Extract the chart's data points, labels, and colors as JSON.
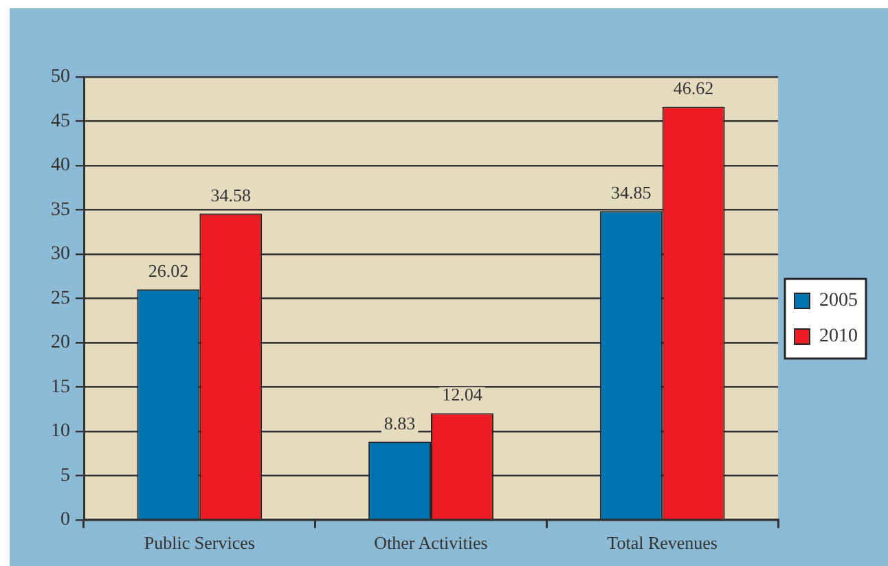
{
  "chart_data": {
    "type": "bar",
    "categories": [
      "Public Services",
      "Other Activities",
      "Total Revenues"
    ],
    "series": [
      {
        "name": "2005",
        "color": "#0072ae",
        "values": [
          26.02,
          8.83,
          34.85
        ]
      },
      {
        "name": "2010",
        "color": "#ed1c24",
        "values": [
          34.58,
          12.04,
          46.62
        ]
      }
    ],
    "ylim": [
      0,
      50
    ],
    "yticks": [
      0,
      5,
      10,
      15,
      20,
      25,
      30,
      35,
      40,
      45,
      50
    ],
    "grid": "y",
    "legend": "right",
    "data_labels": true
  }
}
